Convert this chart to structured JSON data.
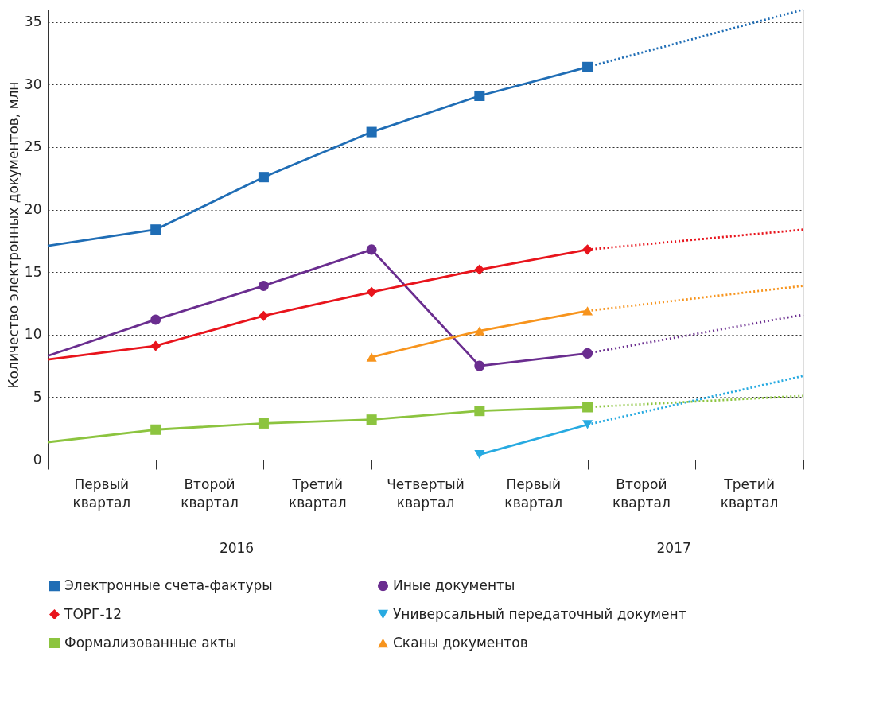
{
  "chart_data": {
    "type": "line",
    "ylabel": "Количество электронных документов, млн",
    "categories": [
      null,
      null,
      null,
      null,
      null,
      null,
      null,
      null
    ],
    "ylim": [
      0,
      36
    ],
    "yticks": [
      0,
      5,
      10,
      15,
      20,
      25,
      30,
      35
    ],
    "grid": "y",
    "legend": "bottom",
    "annotations": [
      "Первый квартал",
      "Второй квартал",
      "Третий квартал",
      "Четвертый квартал",
      "Первый квартал",
      "Второй квартал",
      "Третий квартал",
      "2016",
      "2017"
    ],
    "series": [
      {
        "name": "Электронные счета-фактуры",
        "color": "#1f6db5",
        "marker": "square",
        "line_style": "solid",
        "values": [
          null,
          18.4,
          22.6,
          26.2,
          29.1,
          31.4,
          null,
          null
        ]
      },
      {
        "name": "Иные документы",
        "color": "#6a2d8f",
        "marker": "circle",
        "line_style": "solid",
        "values": [
          null,
          11.2,
          13.9,
          16.8,
          7.5,
          8.5,
          null,
          null
        ]
      },
      {
        "name": "ТОРГ-12",
        "color": "#e8141c",
        "marker": "diamond",
        "line_style": "solid",
        "values": [
          null,
          9.1,
          11.5,
          13.4,
          15.2,
          16.8,
          null,
          null
        ]
      },
      {
        "name": "Универсальный передаточный документ",
        "color": "#27aae1",
        "marker": "triangle-down",
        "line_style": "solid",
        "values": [
          null,
          null,
          null,
          null,
          0.4,
          2.8,
          null,
          null
        ]
      },
      {
        "name": "Формализованные акты",
        "color": "#8cc43f",
        "marker": "square",
        "line_style": "solid",
        "values": [
          null,
          2.4,
          2.9,
          3.2,
          3.9,
          4.2,
          null,
          null
        ]
      },
      {
        "name": "Сканы документов",
        "color": "#f7941d",
        "marker": "triangle",
        "line_style": "solid",
        "values": [
          null,
          null,
          null,
          8.2,
          10.3,
          11.9,
          null,
          null
        ]
      },
      {
        "color": "#1f6db5",
        "marker": "none",
        "line_style": "solid",
        "values": [
          17.1,
          18.4,
          null,
          null,
          null,
          null,
          null,
          null
        ]
      },
      {
        "color": "#6a2d8f",
        "marker": "none",
        "line_style": "solid",
        "values": [
          8.3,
          11.2,
          null,
          null,
          null,
          null,
          null,
          null
        ]
      },
      {
        "color": "#e8141c",
        "marker": "none",
        "line_style": "solid",
        "values": [
          8.0,
          9.1,
          null,
          null,
          null,
          null,
          null,
          null
        ]
      },
      {
        "color": "#8cc43f",
        "marker": "none",
        "line_style": "solid",
        "values": [
          1.4,
          2.4,
          null,
          null,
          null,
          null,
          null,
          null
        ]
      },
      {
        "color": "#1f6db5",
        "marker": "none",
        "line_style": "dotted",
        "values": [
          null,
          null,
          null,
          null,
          null,
          31.4,
          null,
          36.0
        ]
      },
      {
        "color": "#6a2d8f",
        "marker": "none",
        "line_style": "dotted",
        "values": [
          null,
          null,
          null,
          null,
          null,
          8.5,
          null,
          11.6
        ]
      },
      {
        "color": "#e8141c",
        "marker": "none",
        "line_style": "dotted",
        "values": [
          null,
          null,
          null,
          null,
          null,
          16.8,
          null,
          18.4
        ]
      },
      {
        "color": "#27aae1",
        "line_style": "dotted",
        "values": [
          null,
          null,
          null,
          null,
          null,
          2.8,
          null,
          6.7
        ]
      },
      {
        "color": "#8cc43f",
        "marker": "none",
        "line_style": "dotted",
        "values": [
          null,
          null,
          null,
          null,
          null,
          4.2,
          null,
          5.1
        ]
      },
      {
        "color": "#f7941d",
        "marker": "none",
        "line_style": "dotted",
        "values": [
          null,
          null,
          null,
          null,
          null,
          11.9,
          null,
          13.9
        ]
      }
    ]
  }
}
